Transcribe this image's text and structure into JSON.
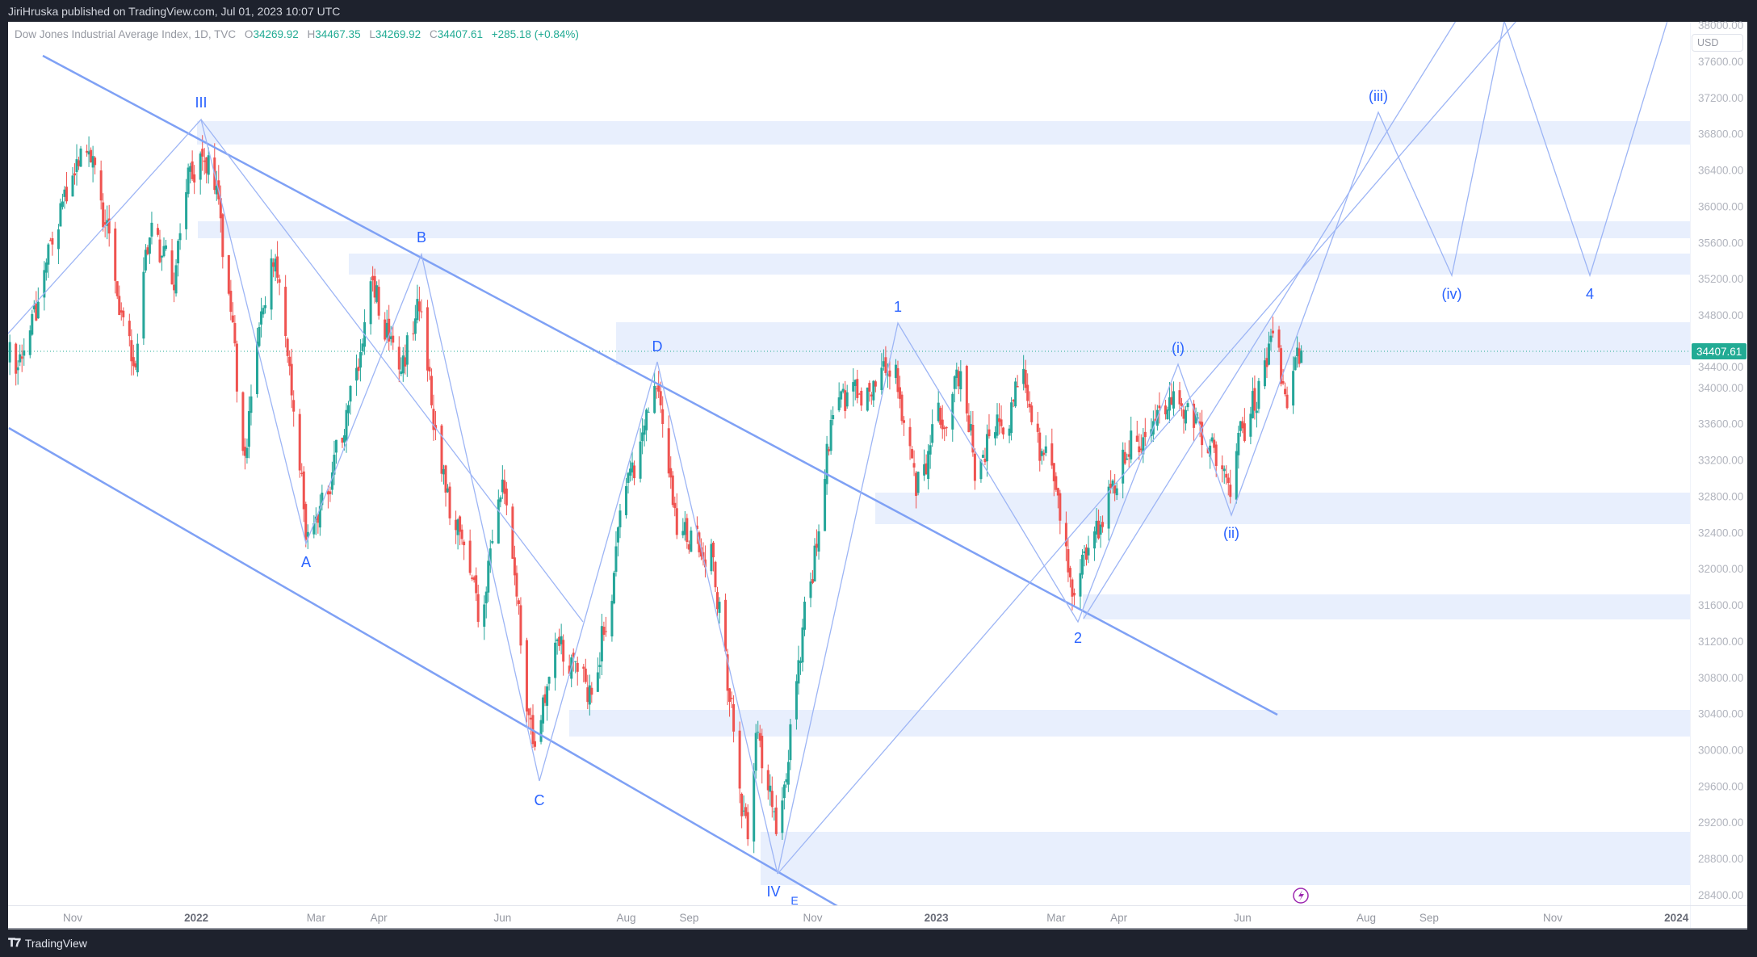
{
  "header": {
    "published": "JiriHruska published on TradingView.com, Jul 01, 2023 10:07 UTC"
  },
  "legend": {
    "symbol": "Dow Jones Industrial Average Index, 1D, TVC",
    "o_label": "O",
    "o": "34269.92",
    "h_label": "H",
    "h": "34467.35",
    "l_label": "L",
    "l": "34269.92",
    "c_label": "C",
    "c": "34407.61",
    "change": "+285.18 (+0.84%)"
  },
  "price_axis": {
    "currency": "USD",
    "labels": [
      "38000.00",
      "37600.00",
      "37200.00",
      "36800.00",
      "36400.00",
      "36000.00",
      "35600.00",
      "35200.00",
      "34800.00",
      "34400.00",
      "34000.00",
      "33600.00",
      "33200.00",
      "32800.00",
      "32400.00",
      "32000.00",
      "31600.00",
      "31200.00",
      "30800.00",
      "30400.00",
      "30000.00",
      "29600.00",
      "29200.00",
      "28800.00",
      "28400.00"
    ],
    "current_price": "34407.61"
  },
  "time_axis": [
    {
      "label": "Nov",
      "date": "2021-11-01"
    },
    {
      "label": "2022",
      "date": "2022-01-01",
      "year": true
    },
    {
      "label": "Mar",
      "date": "2022-03-01"
    },
    {
      "label": "Apr",
      "date": "2022-04-01"
    },
    {
      "label": "Jun",
      "date": "2022-06-01"
    },
    {
      "label": "Aug",
      "date": "2022-08-01"
    },
    {
      "label": "Sep",
      "date": "2022-09-01"
    },
    {
      "label": "Nov",
      "date": "2022-11-01"
    },
    {
      "label": "2023",
      "date": "2023-01-01",
      "year": true
    },
    {
      "label": "Mar",
      "date": "2023-03-01"
    },
    {
      "label": "Apr",
      "date": "2023-04-01"
    },
    {
      "label": "Jun",
      "date": "2023-06-01"
    },
    {
      "label": "Aug",
      "date": "2023-08-01"
    },
    {
      "label": "Sep",
      "date": "2023-09-01"
    },
    {
      "label": "Nov",
      "date": "2023-11-01"
    },
    {
      "label": "2024",
      "date": "2024-01-01",
      "year": true
    }
  ],
  "wave_labels": {
    "III": "III",
    "A": "A",
    "B": "B",
    "C": "C",
    "D": "D",
    "IV": "IV",
    "E": "E",
    "w1": "1",
    "w2": "2",
    "wi": "(i)",
    "wii": "(ii)",
    "wiii": "(iii)",
    "wiv": "(iv)",
    "w4": "4"
  },
  "colors": {
    "up": "#26a69a",
    "down": "#ef5350",
    "drawing": "#2962ff",
    "zone": "#e8effd",
    "accent": "#22ab94"
  },
  "footer": {
    "brand": "TradingView"
  },
  "chart_data": {
    "type": "candlestick",
    "title": "Dow Jones Industrial Average Index, 1D, TVC",
    "ylabel": "USD",
    "ylim": [
      28000,
      38000
    ],
    "last_bar": {
      "date": "2023-06-30",
      "open": 34269.92,
      "high": 34467.35,
      "low": 34269.92,
      "close": 34407.61
    },
    "approx_close_path": [
      [
        "2021-10-01",
        34300
      ],
      [
        "2021-10-05",
        33950
      ],
      [
        "2021-10-22",
        35700
      ],
      [
        "2021-11-08",
        36500
      ],
      [
        "2021-11-20",
        35600
      ],
      [
        "2021-12-01",
        34100
      ],
      [
        "2021-12-10",
        35900
      ],
      [
        "2021-12-20",
        35000
      ],
      [
        "2021-12-28",
        36300
      ],
      [
        "2022-01-04",
        36800
      ],
      [
        "2022-01-12",
        36100
      ],
      [
        "2022-01-24",
        33300
      ],
      [
        "2022-02-09",
        35600
      ],
      [
        "2022-02-24",
        32600
      ],
      [
        "2022-03-08",
        32700
      ],
      [
        "2022-03-29",
        35100
      ],
      [
        "2022-04-12",
        34200
      ],
      [
        "2022-04-21",
        35000
      ],
      [
        "2022-05-02",
        33100
      ],
      [
        "2022-05-20",
        31400
      ],
      [
        "2022-06-02",
        32900
      ],
      [
        "2022-06-17",
        29900
      ],
      [
        "2022-06-28",
        31100
      ],
      [
        "2022-07-14",
        30700
      ],
      [
        "2022-08-15",
        34100
      ],
      [
        "2022-08-26",
        32400
      ],
      [
        "2022-09-12",
        32300
      ],
      [
        "2022-09-30",
        28900
      ],
      [
        "2022-10-05",
        30200
      ],
      [
        "2022-10-14",
        29000
      ],
      [
        "2022-11-10",
        33600
      ],
      [
        "2022-12-12",
        34300
      ],
      [
        "2022-12-22",
        32900
      ],
      [
        "2023-01-13",
        34200
      ],
      [
        "2023-01-20",
        33200
      ],
      [
        "2023-02-12",
        34100
      ],
      [
        "2023-03-01",
        32700
      ],
      [
        "2023-03-11",
        31700
      ],
      [
        "2023-03-20",
        32300
      ],
      [
        "2023-04-05",
        33400
      ],
      [
        "2023-04-29",
        33900
      ],
      [
        "2023-05-10",
        33500
      ],
      [
        "2023-05-25",
        32900
      ],
      [
        "2023-06-05",
        33700
      ],
      [
        "2023-06-16",
        34400
      ],
      [
        "2023-06-23",
        33750
      ],
      [
        "2023-06-30",
        34407.61
      ]
    ],
    "zones_usd": [
      [
        36680,
        36940
      ],
      [
        35600,
        35790
      ],
      [
        35270,
        35500
      ],
      [
        34700,
        35170
      ],
      [
        32520,
        32870
      ],
      [
        31450,
        31730
      ],
      [
        30120,
        30420
      ],
      [
        28530,
        29130
      ]
    ]
  }
}
